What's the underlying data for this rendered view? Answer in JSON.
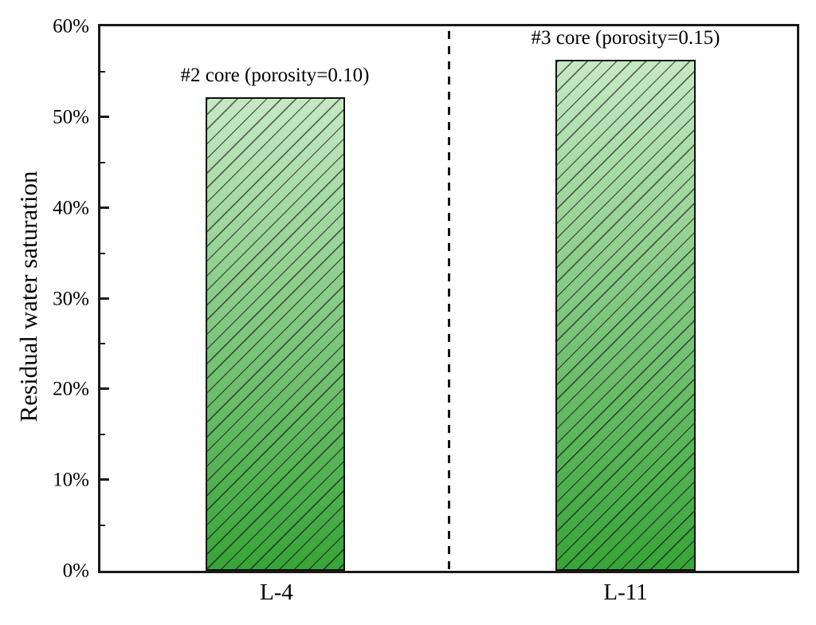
{
  "chart_data": {
    "type": "bar",
    "title": "",
    "ylabel": "Residual water saturation",
    "xlabel": "",
    "categories": [
      "L-4",
      "L-11"
    ],
    "values": [
      52.2,
      56.3
    ],
    "bar_annotations": [
      "#2 core (porosity=0.10)",
      "#3 core (porosity=0.15)"
    ],
    "ylim": [
      0,
      60
    ],
    "ytick_step": 10,
    "yminor_step": 5,
    "ytick_labels": [
      "0%",
      "10%",
      "20%",
      "30%",
      "40%",
      "50%",
      "60%"
    ],
    "grid": "off",
    "legend": "none",
    "separator": {
      "style": "dashed",
      "orientation": "vertical",
      "position": "center between categories"
    },
    "hatch": "diagonal-forward-slash",
    "colors": {
      "bar_gradient_top": "#c6e9c4",
      "bar_gradient_bottom": "#38a438",
      "bar_border": "#101010",
      "hatch_line": "rgba(0,0,0,0.55)",
      "axis": "#1a1a1a",
      "text": "#000000"
    }
  }
}
